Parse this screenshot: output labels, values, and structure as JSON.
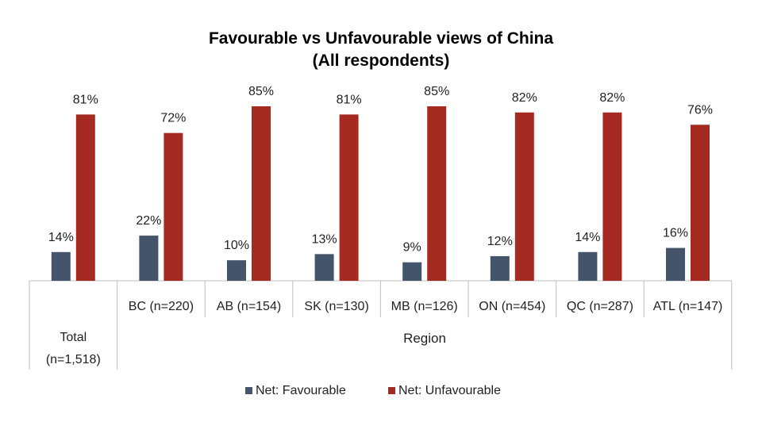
{
  "chart_data": {
    "type": "bar",
    "title": "Favourable vs Unfavourable views of China",
    "subtitle": "(All respondents)",
    "categories": [
      "Total (n=1,518)",
      "BC (n=220)",
      "AB (n=154)",
      "SK (n=130)",
      "MB (n=126)",
      "ON (n=454)",
      "QC (n=287)",
      "ATL (n=147)"
    ],
    "category_labels": [
      [
        "Total",
        "(n=1,518)"
      ],
      [
        "BC (n=220)"
      ],
      [
        "AB (n=154)"
      ],
      [
        "SK (n=130)"
      ],
      [
        "MB (n=126)"
      ],
      [
        "ON (n=454)"
      ],
      [
        "QC (n=287)"
      ],
      [
        "ATL (n=147)"
      ]
    ],
    "group_label": "Region",
    "series": [
      {
        "name": "Net: Favourable",
        "color": "#44546a",
        "values": [
          14,
          22,
          10,
          13,
          9,
          12,
          14,
          16
        ],
        "labels": [
          "14%",
          "22%",
          "10%",
          "13%",
          "9%",
          "12%",
          "14%",
          "16%"
        ]
      },
      {
        "name": "Net: Unfavourable",
        "color": "#a52a22",
        "values": [
          81,
          72,
          85,
          81,
          85,
          82,
          82,
          76
        ],
        "labels": [
          "81%",
          "72%",
          "85%",
          "81%",
          "85%",
          "82%",
          "82%",
          "76%"
        ]
      }
    ],
    "ylim": [
      0,
      85
    ],
    "grid": false,
    "legend_position": "bottom"
  }
}
